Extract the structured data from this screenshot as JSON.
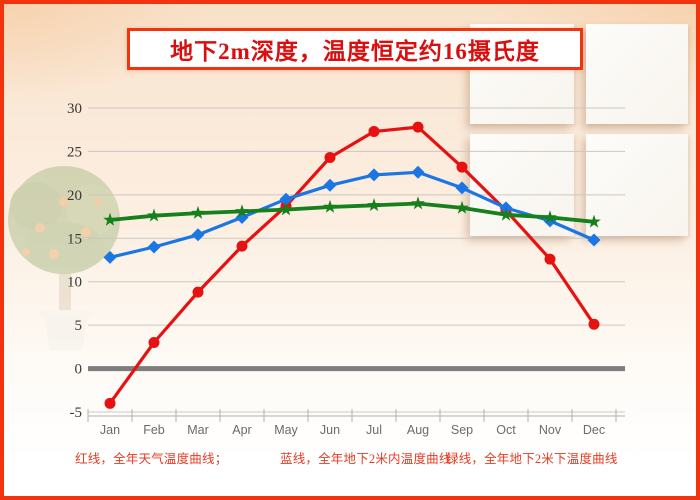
{
  "title": {
    "text": "地下2m深度，温度恒定约16摄氏度"
  },
  "legend": {
    "red": "红线，全年天气温度曲线；",
    "blue": "蓝线，全年地下2米内温度曲线",
    "green": "绿线，全年地下2米下温度曲线"
  },
  "colors": {
    "red": "#e81111",
    "blue": "#1b76e3",
    "green": "#15801c",
    "frame": "#f2330d",
    "title_text": "#d90f0f",
    "gridline": "#cdc7c0",
    "zero_line": "#7d7d7d",
    "axis_line": "#b5afa8",
    "ytick_text": "#3c3836",
    "month_text": "#6b6b6b",
    "legend_text": "#e73a22"
  },
  "chart_data": {
    "type": "line",
    "title": "地下2m深度，温度恒定约16摄氏度",
    "categories": [
      "Jan",
      "Feb",
      "Mar",
      "Apr",
      "May",
      "Jun",
      "Jul",
      "Aug",
      "Sep",
      "Oct",
      "Nov",
      "Dec"
    ],
    "series": [
      {
        "name": "全年天气温度曲线",
        "color_key": "red",
        "marker": "circle",
        "values": [
          -4,
          3,
          8.8,
          14.1,
          18.7,
          24.3,
          27.3,
          27.8,
          23.2,
          18.2,
          12.6,
          5.1
        ]
      },
      {
        "name": "全年地下2米内温度曲线",
        "color_key": "blue",
        "marker": "diamond",
        "values": [
          12.8,
          14.0,
          15.4,
          17.4,
          19.5,
          21.1,
          22.3,
          22.6,
          20.8,
          18.5,
          17.0,
          14.8
        ]
      },
      {
        "name": "全年地下2米下温度曲线",
        "color_key": "green",
        "marker": "star",
        "values": [
          17.1,
          17.6,
          17.9,
          18.1,
          18.3,
          18.6,
          18.8,
          19.0,
          18.5,
          17.7,
          17.4,
          16.9
        ]
      }
    ],
    "xlabel": "",
    "ylabel": "",
    "ylim": [
      -5,
      30
    ],
    "yticks": [
      30,
      25,
      20,
      15,
      10,
      5,
      0,
      -5
    ],
    "grid": true,
    "legend_position": "bottom"
  }
}
